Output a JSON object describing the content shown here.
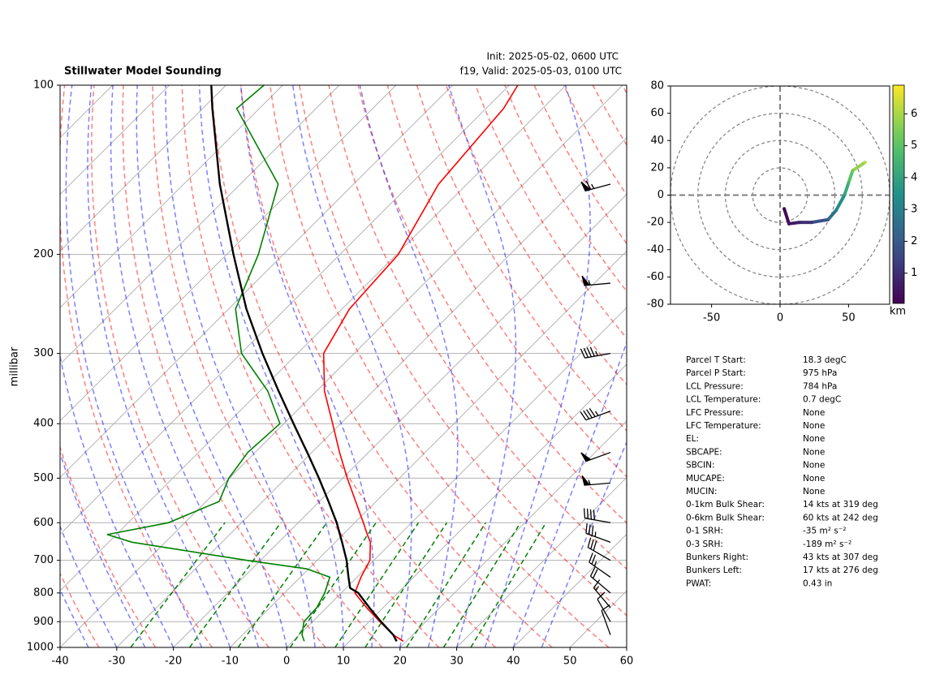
{
  "chart_data": [
    {
      "type": "skewt",
      "title": "Stillwater Model Sounding",
      "init": "Init: 2025-05-02, 0600 UTC",
      "valid": "f19, Valid: 2025-05-03, 0100 UTC",
      "ylabel": "millibar",
      "xlim": [
        -40,
        60
      ],
      "xticks": [
        -40,
        -30,
        -20,
        -10,
        0,
        10,
        20,
        30,
        40,
        50,
        60
      ],
      "ylim": [
        1000,
        100
      ],
      "yticks": [
        100,
        200,
        300,
        400,
        500,
        600,
        700,
        800,
        900,
        1000
      ],
      "log_y": true,
      "grid": true,
      "series": [
        {
          "color": "#ff0000",
          "pressure": [
            975,
            950,
            900,
            850,
            800,
            750,
            725,
            700,
            650,
            630,
            600,
            550,
            500,
            450,
            400,
            350,
            300,
            250,
            200,
            150,
            110,
            100
          ],
          "values": [
            19.5,
            16.6,
            11.9,
            7.1,
            2.4,
            0.7,
            0,
            -0.7,
            -3.8,
            -5.7,
            -8.5,
            -13.6,
            -19.2,
            -25.1,
            -31.4,
            -38.6,
            -45.4,
            -48.7,
            -49.7,
            -55,
            -56.9,
            -58.5
          ]
        },
        {
          "color": "#008000",
          "pressure": [
            975,
            950,
            900,
            850,
            800,
            750,
            725,
            700,
            650,
            630,
            600,
            550,
            500,
            450,
            400,
            350,
            300,
            250,
            200,
            150,
            110,
            100
          ],
          "values": [
            2.0,
            0.5,
            -1.5,
            -1.7,
            -2.9,
            -4.8,
            -10.3,
            -22.4,
            -45.9,
            -51.6,
            -42.9,
            -37.7,
            -40.1,
            -41.3,
            -40.7,
            -48.6,
            -59.9,
            -68.8,
            -74.4,
            -83.3,
            -104,
            -103.3
          ]
        },
        {
          "color": "#000000",
          "pressure": [
            975,
            950,
            900,
            850,
            800,
            784,
            750,
            700,
            650,
            600,
            550,
            500,
            450,
            400,
            350,
            300,
            250,
            200,
            150,
            110,
            100
          ],
          "values": [
            18.3,
            16.6,
            12.1,
            7.6,
            3,
            0.7,
            -1.5,
            -4.8,
            -8.8,
            -13.2,
            -18.4,
            -24.2,
            -30.8,
            -38.3,
            -46.7,
            -56.2,
            -66.9,
            -78.8,
            -93.6,
            -108.3,
            -112.6
          ]
        }
      ],
      "wind_barbs": {
        "pressure": [
          150,
          225,
          300,
          380,
          450,
          510,
          600,
          650,
          700,
          750,
          800,
          850,
          900,
          950
        ],
        "speed": [
          65,
          55,
          45,
          45,
          50,
          55,
          40,
          35,
          30,
          25,
          20,
          15,
          10,
          10
        ],
        "direction": [
          255,
          265,
          260,
          250,
          250,
          265,
          280,
          290,
          300,
          305,
          310,
          320,
          330,
          340
        ]
      }
    },
    {
      "type": "hodograph",
      "xlim": [
        -80,
        80
      ],
      "ylim": [
        -80,
        80
      ],
      "xticks": [
        -50,
        0,
        50
      ],
      "yticks": [
        -80,
        -60,
        -40,
        -20,
        0,
        20,
        40,
        60,
        80
      ],
      "rings": [
        20,
        40,
        60,
        80
      ],
      "u": [
        3,
        6.5,
        14,
        23,
        35,
        41,
        47,
        50,
        53,
        62
      ],
      "v": [
        -10,
        -21,
        -20,
        -20,
        -18,
        -11,
        0,
        9,
        18,
        24
      ],
      "heights": [
        0.1,
        0.4,
        0.8,
        1.2,
        2.2,
        3,
        3.8,
        4.6,
        5.4,
        6.2
      ],
      "colormap": "viridis",
      "clim": [
        0.05,
        6.9
      ],
      "cticks": [
        1,
        2,
        3,
        4,
        5,
        6
      ],
      "colorbar_label": "km"
    }
  ],
  "parameters": {
    "rows": [
      [
        "Parcel T Start:",
        "18.3 degC"
      ],
      [
        "Parcel P Start:",
        "975 hPa"
      ],
      [
        "LCL Pressure:",
        "784 hPa"
      ],
      [
        "LCL Temperature:",
        "0.7 degC"
      ],
      [
        "LFC Pressure:",
        "None"
      ],
      [
        "LFC Temperature:",
        "None"
      ],
      [
        "EL:",
        "None"
      ],
      [
        "SBCAPE:",
        "None"
      ],
      [
        "SBCIN:",
        "None"
      ],
      [
        "MUCAPE:",
        "None"
      ],
      [
        "MUCIN:",
        "None"
      ],
      [
        "0-1km Bulk Shear:",
        "14 kts at 319 deg"
      ],
      [
        "0-6km Bulk Shear:",
        "60 kts at 242 deg"
      ],
      [
        "0-1 SRH:",
        "-35 m² s⁻²"
      ],
      [
        "0-3 SRH:",
        "-189 m² s⁻²"
      ],
      [
        "Bunkers Right:",
        "43 kts at 307 deg"
      ],
      [
        "Bunkers Left:",
        "17 kts at 276 deg"
      ],
      [
        "PWAT:",
        "0.43 in"
      ]
    ]
  }
}
